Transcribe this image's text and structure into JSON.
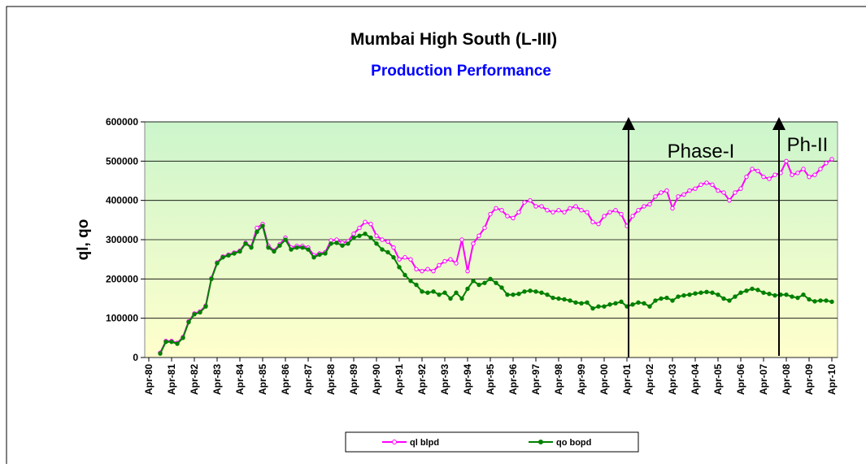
{
  "chart_data": {
    "type": "line",
    "title": "Mumbai High South (L-III)",
    "subtitle": "Production Performance",
    "y_label": "ql, qo",
    "annotations": [
      "Phase-I",
      "Ph-II"
    ],
    "categories": [
      "Apr-80",
      null,
      null,
      null,
      "Apr-81",
      null,
      null,
      null,
      "Apr-82",
      null,
      null,
      null,
      "Apr-83",
      null,
      null,
      null,
      "Apr-84",
      null,
      null,
      null,
      "Apr-85",
      null,
      null,
      null,
      "Apr-86",
      null,
      null,
      null,
      "Apr-87",
      null,
      null,
      null,
      "Apr-88",
      null,
      null,
      null,
      "Apr-89",
      null,
      null,
      null,
      "Apr-90",
      null,
      null,
      null,
      "Apr-91",
      null,
      null,
      null,
      "Apr-92",
      null,
      null,
      null,
      "Apr-93",
      null,
      null,
      null,
      "Apr-94",
      null,
      null,
      null,
      "Apr-95",
      null,
      null,
      null,
      "Apr-96",
      null,
      null,
      null,
      "Apr-97",
      null,
      null,
      null,
      "Apr-98",
      null,
      null,
      null,
      "Apr-99",
      null,
      null,
      null,
      "Apr-00",
      null,
      null,
      null,
      "Apr-01",
      null,
      null,
      null,
      "Apr-02",
      null,
      null,
      null,
      "Apr-03",
      null,
      null,
      null,
      "Apr-04",
      null,
      null,
      null,
      "Apr-05",
      null,
      null,
      null,
      "Apr-06",
      null,
      null,
      null,
      "Apr-07",
      null,
      null,
      null,
      "Apr-08",
      null,
      null,
      null,
      "Apr-09",
      null,
      null,
      null,
      "Apr-10"
    ],
    "series": [
      {
        "name": "ql blpd",
        "color": "#ff00ff",
        "values": [
          null,
          null,
          12000,
          42000,
          42000,
          37000,
          52000,
          92000,
          112000,
          117000,
          132000,
          202000,
          242000,
          257000,
          262000,
          267000,
          272000,
          292000,
          282000,
          330000,
          340000,
          285000,
          272000,
          288000,
          305000,
          280000,
          284000,
          284000,
          280000,
          260000,
          265000,
          268000,
          298000,
          300000,
          292000,
          296000,
          315000,
          330000,
          345000,
          340000,
          310000,
          300000,
          295000,
          280000,
          250000,
          255000,
          250000,
          225000,
          220000,
          225000,
          220000,
          235000,
          245000,
          250000,
          240000,
          300000,
          220000,
          290000,
          310000,
          330000,
          365000,
          380000,
          375000,
          360000,
          355000,
          370000,
          395000,
          400000,
          385000,
          385000,
          375000,
          370000,
          375000,
          370000,
          380000,
          385000,
          375000,
          370000,
          345000,
          340000,
          360000,
          370000,
          375000,
          365000,
          335000,
          360000,
          375000,
          385000,
          390000,
          410000,
          420000,
          425000,
          380000,
          410000,
          415000,
          425000,
          430000,
          440000,
          445000,
          440000,
          425000,
          420000,
          400000,
          420000,
          430000,
          460000,
          480000,
          475000,
          460000,
          455000,
          465000,
          470000,
          500000,
          465000,
          470000,
          480000,
          460000,
          465000,
          480000,
          495000,
          505000
        ]
      },
      {
        "name": "qo bopd",
        "color": "#008000",
        "values": [
          null,
          null,
          10000,
          40000,
          40000,
          35000,
          50000,
          90000,
          110000,
          115000,
          130000,
          200000,
          240000,
          255000,
          260000,
          265000,
          270000,
          290000,
          280000,
          320000,
          335000,
          280000,
          270000,
          285000,
          300000,
          275000,
          280000,
          280000,
          275000,
          255000,
          262000,
          265000,
          290000,
          292000,
          285000,
          290000,
          305000,
          310000,
          315000,
          305000,
          290000,
          275000,
          268000,
          255000,
          230000,
          210000,
          195000,
          185000,
          168000,
          165000,
          168000,
          160000,
          165000,
          150000,
          165000,
          150000,
          175000,
          195000,
          185000,
          190000,
          200000,
          190000,
          178000,
          160000,
          160000,
          162000,
          168000,
          170000,
          168000,
          165000,
          160000,
          152000,
          150000,
          148000,
          145000,
          140000,
          138000,
          140000,
          125000,
          130000,
          130000,
          135000,
          138000,
          142000,
          130000,
          135000,
          140000,
          138000,
          130000,
          145000,
          150000,
          152000,
          145000,
          155000,
          158000,
          160000,
          163000,
          165000,
          167000,
          165000,
          160000,
          150000,
          145000,
          155000,
          165000,
          170000,
          175000,
          172000,
          165000,
          162000,
          158000,
          160000,
          160000,
          155000,
          152000,
          160000,
          148000,
          143000,
          145000,
          145000,
          142000
        ]
      }
    ],
    "ylim": [
      0,
      600000
    ],
    "yticks": [
      0,
      100000,
      200000,
      300000,
      400000,
      500000,
      600000
    ],
    "grid": true,
    "legend": "bottom"
  }
}
